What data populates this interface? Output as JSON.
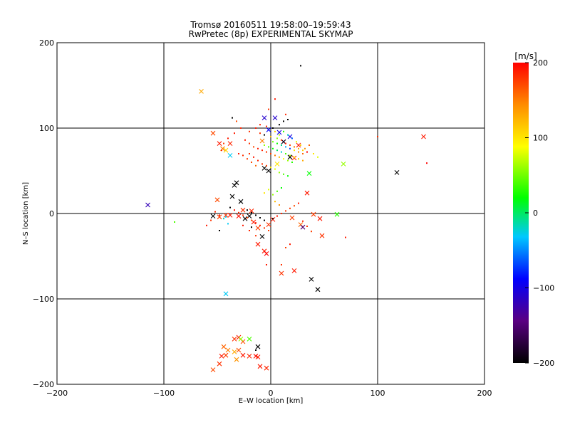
{
  "chart_data": {
    "type": "scatter",
    "title": "Tromsø 20160511 19:58:00–19:59:43",
    "subtitle": "RwPretec (8p) EXPERIMENTAL SKYMAP",
    "xlabel": "E–W location [km]",
    "ylabel": "N–S location [km]",
    "xlim": [
      -200,
      200
    ],
    "ylim": [
      -200,
      200
    ],
    "xticks": [
      -200,
      -100,
      0,
      100,
      200
    ],
    "yticks": [
      -200,
      -100,
      0,
      100,
      200
    ],
    "xtick_labels": [
      "−200",
      "−100",
      "0",
      "100",
      "200"
    ],
    "ytick_labels": [
      "200",
      "100",
      "0",
      "−100",
      "−200"
    ],
    "grid": true,
    "colorbar": {
      "label": "[m/s]",
      "range": [
        -200,
        200
      ],
      "ticks": [
        200,
        100,
        0,
        -100,
        -200
      ],
      "tick_labels": [
        "200",
        "100",
        "0",
        "−100",
        "−200"
      ],
      "colors": [
        "#000000",
        "#5a0082",
        "#0000ff",
        "#00c8ff",
        "#00ff00",
        "#ffff00",
        "#ff8c00",
        "#ff0000"
      ]
    },
    "series": [
      {
        "marker": "x",
        "points": [
          [
            -65,
            143,
            130
          ],
          [
            -54,
            94,
            170
          ],
          [
            -48,
            82,
            190
          ],
          [
            -45,
            76,
            150
          ],
          [
            -42,
            74,
            110
          ],
          [
            -38,
            82,
            185
          ],
          [
            -38,
            68,
            -30
          ],
          [
            -50,
            16,
            170
          ],
          [
            -54,
            -3,
            -200
          ],
          [
            -48,
            -4,
            175
          ],
          [
            -42,
            -2,
            180
          ],
          [
            -36,
            20,
            -200
          ],
          [
            -34,
            33,
            -200
          ],
          [
            -32,
            36,
            -200
          ],
          [
            -28,
            14,
            -200
          ],
          [
            -24,
            -6,
            -200
          ],
          [
            -20,
            -3,
            -200
          ],
          [
            -16,
            -10,
            190
          ],
          [
            -12,
            -17,
            175
          ],
          [
            -8,
            -27,
            -200
          ],
          [
            -6,
            -44,
            190
          ],
          [
            -4,
            -47,
            200
          ],
          [
            -30,
            -3,
            195
          ],
          [
            -38,
            -2,
            190
          ],
          [
            -26,
            4,
            180
          ],
          [
            -18,
            3,
            185
          ],
          [
            -115,
            10,
            -120
          ],
          [
            -42,
            -94,
            -30
          ],
          [
            -6,
            112,
            -110
          ],
          [
            4,
            112,
            -110
          ],
          [
            8,
            95,
            -100
          ],
          [
            12,
            84,
            -190
          ],
          [
            -2,
            98,
            -90
          ],
          [
            -8,
            85,
            150
          ],
          [
            18,
            90,
            -100
          ],
          [
            26,
            80,
            190
          ],
          [
            6,
            58,
            100
          ],
          [
            -6,
            53,
            -200
          ],
          [
            -2,
            50,
            -200
          ],
          [
            18,
            66,
            -200
          ],
          [
            22,
            65,
            180
          ],
          [
            36,
            47,
            20
          ],
          [
            34,
            24,
            190
          ],
          [
            28,
            -13,
            160
          ],
          [
            30,
            -16,
            -150
          ],
          [
            20,
            -5,
            175
          ],
          [
            10,
            -70,
            180
          ],
          [
            22,
            -67,
            190
          ],
          [
            38,
            -77,
            -200
          ],
          [
            44,
            -89,
            -200
          ],
          [
            48,
            -26,
            180
          ],
          [
            46,
            -6,
            190
          ],
          [
            40,
            -1,
            175
          ],
          [
            -2,
            -13,
            180
          ],
          [
            2,
            -7,
            190
          ],
          [
            -34,
            -147,
            180
          ],
          [
            -30,
            -145,
            190
          ],
          [
            -26,
            -150,
            170
          ],
          [
            -14,
            -167,
            195
          ],
          [
            -44,
            -156,
            160
          ],
          [
            -40,
            -160,
            150
          ],
          [
            -34,
            -162,
            130
          ],
          [
            -32,
            -171,
            140
          ],
          [
            -20,
            -147,
            40
          ],
          [
            -12,
            -156,
            -200
          ],
          [
            -46,
            -167,
            190
          ],
          [
            -42,
            -166,
            175
          ],
          [
            -48,
            -176,
            180
          ],
          [
            -54,
            -183,
            170
          ],
          [
            -10,
            -179,
            190
          ],
          [
            -4,
            -181,
            185
          ],
          [
            -28,
            -147,
            60
          ],
          [
            -26,
            -166,
            190
          ],
          [
            -20,
            -167,
            185
          ],
          [
            -12,
            -168,
            190
          ],
          [
            -30,
            -160,
            170
          ],
          [
            118,
            48,
            -200
          ],
          [
            143,
            90,
            190
          ],
          [
            62,
            -1,
            30
          ],
          [
            68,
            58,
            60
          ],
          [
            -12,
            -36,
            190
          ]
        ]
      },
      {
        "marker": "dot",
        "points": [
          [
            28,
            173,
            -200
          ],
          [
            4,
            134,
            190
          ],
          [
            14,
            116,
            185
          ],
          [
            -2,
            122,
            180
          ],
          [
            -36,
            112,
            -200
          ],
          [
            -32,
            108,
            170
          ],
          [
            -28,
            100,
            185
          ],
          [
            -20,
            96,
            180
          ],
          [
            -10,
            94,
            180
          ],
          [
            0,
            90,
            120
          ],
          [
            6,
            88,
            60
          ],
          [
            10,
            86,
            180
          ],
          [
            14,
            82,
            190
          ],
          [
            18,
            80,
            170
          ],
          [
            22,
            78,
            150
          ],
          [
            26,
            76,
            130
          ],
          [
            30,
            74,
            110
          ],
          [
            34,
            72,
            200
          ],
          [
            -24,
            86,
            190
          ],
          [
            -20,
            82,
            180
          ],
          [
            -16,
            78,
            170
          ],
          [
            -12,
            76,
            190
          ],
          [
            -8,
            74,
            185
          ],
          [
            -4,
            72,
            180
          ],
          [
            0,
            70,
            175
          ],
          [
            4,
            68,
            150
          ],
          [
            8,
            66,
            120
          ],
          [
            12,
            64,
            90
          ],
          [
            16,
            62,
            60
          ],
          [
            20,
            60,
            30
          ],
          [
            -30,
            70,
            190
          ],
          [
            -26,
            68,
            180
          ],
          [
            -22,
            64,
            175
          ],
          [
            -18,
            60,
            170
          ],
          [
            -14,
            56,
            160
          ],
          [
            2,
            84,
            50
          ],
          [
            6,
            82,
            20
          ],
          [
            10,
            80,
            -10
          ],
          [
            14,
            78,
            -40
          ],
          [
            18,
            76,
            -70
          ],
          [
            22,
            74,
            100
          ],
          [
            26,
            72,
            140
          ],
          [
            30,
            70,
            160
          ],
          [
            -6,
            92,
            -200
          ],
          [
            2,
            100,
            -200
          ],
          [
            8,
            104,
            -200
          ],
          [
            12,
            108,
            -200
          ],
          [
            16,
            110,
            -200
          ],
          [
            -40,
            88,
            190
          ],
          [
            -44,
            82,
            175
          ],
          [
            -46,
            74,
            185
          ],
          [
            -34,
            94,
            190
          ],
          [
            -4,
            102,
            180
          ],
          [
            4,
            96,
            110
          ],
          [
            8,
            92,
            70
          ],
          [
            12,
            96,
            30
          ],
          [
            16,
            92,
            -20
          ],
          [
            20,
            88,
            -60
          ],
          [
            24,
            84,
            80
          ],
          [
            28,
            80,
            110
          ],
          [
            32,
            76,
            140
          ],
          [
            36,
            80,
            160
          ],
          [
            40,
            70,
            100
          ],
          [
            44,
            66,
            80
          ],
          [
            -14,
            100,
            190
          ],
          [
            -10,
            104,
            185
          ],
          [
            -6,
            80,
            60
          ],
          [
            -2,
            78,
            40
          ],
          [
            2,
            76,
            20
          ],
          [
            6,
            74,
            0
          ],
          [
            10,
            72,
            -20
          ],
          [
            14,
            70,
            40
          ],
          [
            18,
            68,
            70
          ],
          [
            22,
            66,
            90
          ],
          [
            26,
            64,
            110
          ],
          [
            30,
            62,
            130
          ],
          [
            -20,
            70,
            180
          ],
          [
            -16,
            66,
            190
          ],
          [
            -12,
            62,
            185
          ],
          [
            -8,
            58,
            180
          ],
          [
            -4,
            56,
            175
          ],
          [
            0,
            54,
            100
          ],
          [
            4,
            52,
            80
          ],
          [
            8,
            48,
            60
          ],
          [
            12,
            46,
            40
          ],
          [
            16,
            44,
            20
          ],
          [
            -38,
            7,
            -200
          ],
          [
            -34,
            4,
            190
          ],
          [
            -30,
            1,
            185
          ],
          [
            -26,
            -2,
            180
          ],
          [
            -22,
            -5,
            175
          ],
          [
            -18,
            -8,
            170
          ],
          [
            -14,
            -11,
            190
          ],
          [
            -10,
            -14,
            185
          ],
          [
            -6,
            -17,
            180
          ],
          [
            -2,
            -20,
            175
          ],
          [
            2,
            -6,
            -200
          ],
          [
            6,
            -3,
            190
          ],
          [
            10,
            0,
            185
          ],
          [
            14,
            3,
            180
          ],
          [
            18,
            6,
            175
          ],
          [
            22,
            9,
            170
          ],
          [
            26,
            12,
            190
          ],
          [
            30,
            -9,
            185
          ],
          [
            34,
            -15,
            180
          ],
          [
            38,
            -21,
            175
          ],
          [
            -40,
            -12,
            -30
          ],
          [
            -44,
            -6,
            -20
          ],
          [
            -48,
            -2,
            190
          ],
          [
            -52,
            2,
            185
          ],
          [
            -56,
            -8,
            180
          ],
          [
            -60,
            -14,
            190
          ],
          [
            -22,
            4,
            -200
          ],
          [
            -18,
            1,
            -200
          ],
          [
            -14,
            -2,
            -200
          ],
          [
            -10,
            -5,
            -200
          ],
          [
            -6,
            -8,
            -200
          ],
          [
            -26,
            -14,
            190
          ],
          [
            -20,
            -20,
            185
          ],
          [
            -14,
            -26,
            180
          ],
          [
            -90,
            -10,
            40
          ],
          [
            2,
            22,
            60
          ],
          [
            6,
            26,
            40
          ],
          [
            10,
            30,
            20
          ],
          [
            -2,
            28,
            80
          ],
          [
            -6,
            24,
            100
          ],
          [
            4,
            14,
            120
          ],
          [
            8,
            10,
            140
          ],
          [
            -4,
            -60,
            190
          ],
          [
            10,
            -60,
            180
          ],
          [
            14,
            -40,
            175
          ],
          [
            18,
            -36,
            190
          ],
          [
            70,
            -28,
            190
          ],
          [
            -14,
            -160,
            -200
          ],
          [
            100,
            90,
            180
          ],
          [
            146,
            59,
            200
          ],
          [
            -18,
            -16,
            -200
          ],
          [
            -48,
            -20,
            -200
          ],
          [
            -42,
            -4,
            -30
          ]
        ]
      }
    ]
  }
}
